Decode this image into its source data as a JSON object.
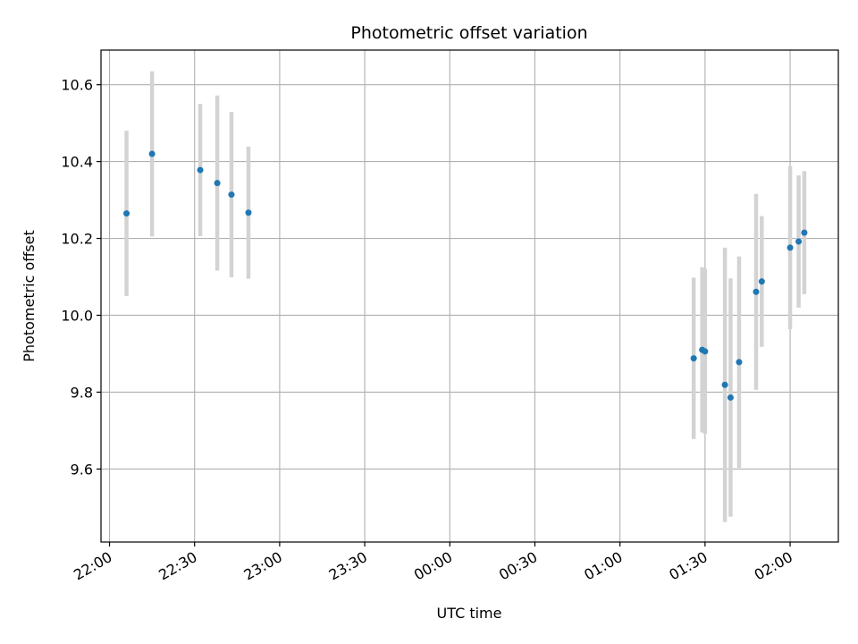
{
  "chart_data": {
    "type": "scatter",
    "title": "Photometric offset variation",
    "xlabel": "UTC time",
    "ylabel": "Photometric offset",
    "grid": true,
    "legend": "none",
    "x_axis_type": "time",
    "xlim": [
      "21:57",
      "02:17"
    ],
    "ylim": [
      9.41,
      10.69
    ],
    "x_ticks": [
      "22:00",
      "22:30",
      "23:00",
      "23:30",
      "00:00",
      "00:30",
      "01:00",
      "01:30",
      "02:00"
    ],
    "y_ticks": [
      "9.6",
      "9.8",
      "10.0",
      "10.2",
      "10.4",
      "10.6"
    ],
    "colors": {
      "point": "#1f77b4",
      "errorbar": "#d3d3d3",
      "grid": "#b0b0b0"
    },
    "series": [
      {
        "points": [
          {
            "x": "22:06",
            "y": 10.265,
            "err": 0.215
          },
          {
            "x": "22:15",
            "y": 10.42,
            "err": 0.215
          },
          {
            "x": "22:32",
            "y": 10.378,
            "err": 0.172
          },
          {
            "x": "22:38",
            "y": 10.344,
            "err": 0.228
          },
          {
            "x": "22:43",
            "y": 10.314,
            "err": 0.215
          },
          {
            "x": "22:49",
            "y": 10.267,
            "err": 0.172
          },
          {
            "x": "01:26",
            "y": 9.888,
            "err": 0.21
          },
          {
            "x": "01:29",
            "y": 9.91,
            "err": 0.215
          },
          {
            "x": "01:30",
            "y": 9.906,
            "err": 0.215
          },
          {
            "x": "01:37",
            "y": 9.819,
            "err": 0.357
          },
          {
            "x": "01:39",
            "y": 9.786,
            "err": 0.31
          },
          {
            "x": "01:42",
            "y": 9.878,
            "err": 0.275
          },
          {
            "x": "01:48",
            "y": 10.061,
            "err": 0.255
          },
          {
            "x": "01:50",
            "y": 10.088,
            "err": 0.17
          },
          {
            "x": "02:00",
            "y": 10.176,
            "err": 0.212
          },
          {
            "x": "02:03",
            "y": 10.192,
            "err": 0.172
          },
          {
            "x": "02:05",
            "y": 10.215,
            "err": 0.16
          }
        ]
      }
    ]
  }
}
